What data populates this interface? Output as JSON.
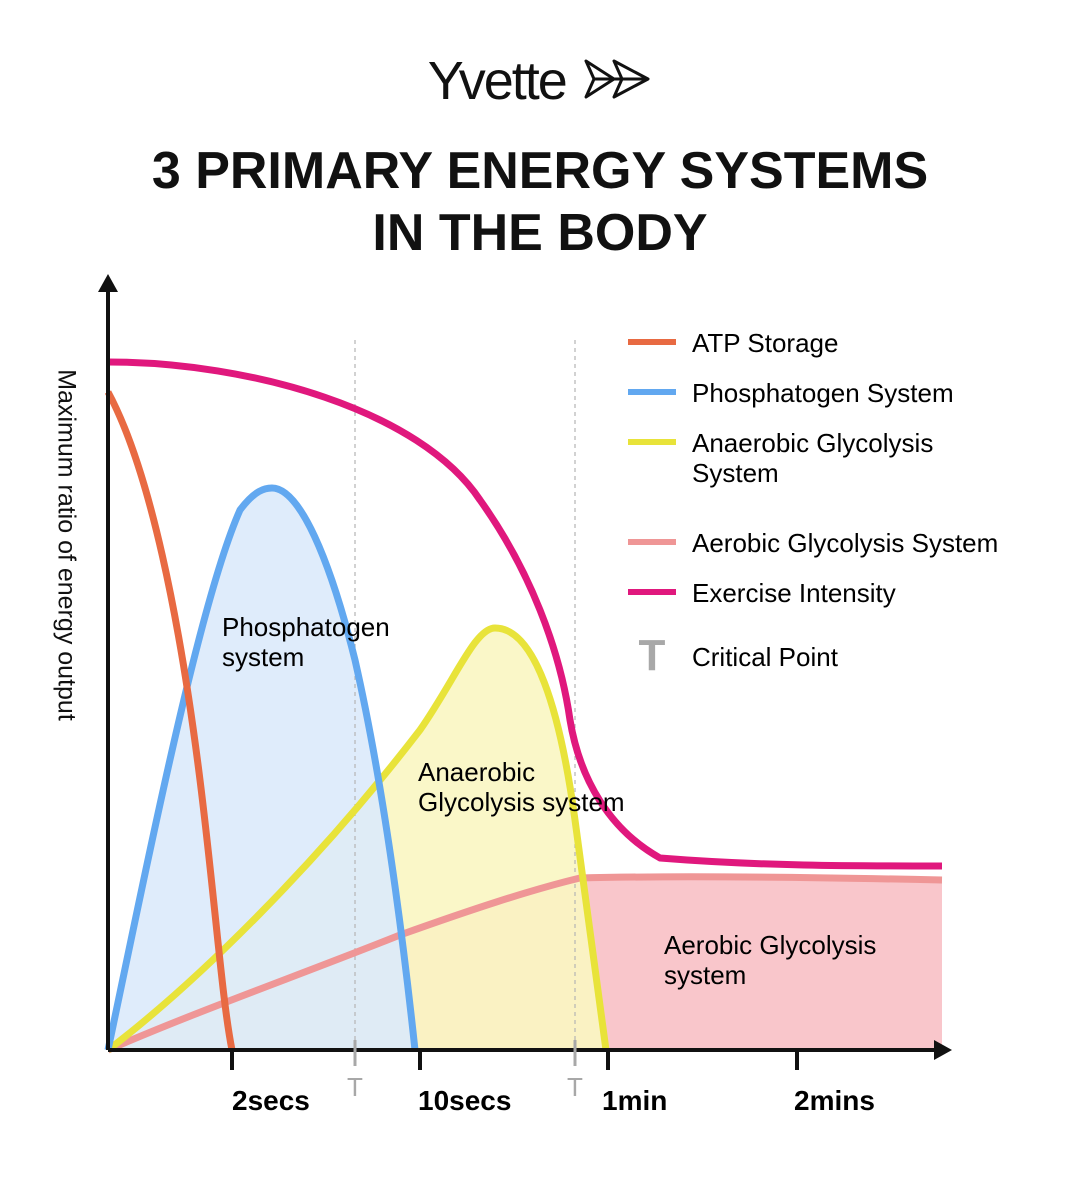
{
  "brand": {
    "name": "Yvette",
    "icon": "double-arrow-logo"
  },
  "title": {
    "line1": "3 PRIMARY ENERGY SYSTEMS",
    "line2": "IN THE BODY"
  },
  "colors": {
    "atp": "#E86A42",
    "phosphagen": "#62A8F0",
    "anaerobic": "#E8E33A",
    "aerobic": "#EF9696",
    "intensity": "#E0187D",
    "critical": "#A8A8A8",
    "phosphagen_fill": "#DCEAFB",
    "anaerobic_fill": "#FAF6C2",
    "aerobic_fill": "#F9C6CB"
  },
  "chart_data": {
    "type": "line",
    "ylabel": "Maximum ratio of energy output",
    "xticks": [
      "2secs",
      "10secs",
      "1min",
      "2mins"
    ],
    "critical_marker": "T",
    "legend": [
      {
        "key": "atp",
        "label": "ATP Storage",
        "kind": "line"
      },
      {
        "key": "phosphagen",
        "label": "Phosphatogen System",
        "kind": "line"
      },
      {
        "key": "anaerobic",
        "label": "Anaerobic Glycolysis",
        "label2": "System",
        "kind": "line"
      },
      {
        "key": "aerobic",
        "label": "Aerobic Glycolysis System",
        "kind": "line"
      },
      {
        "key": "intensity",
        "label": "Exercise Intensity",
        "kind": "line"
      },
      {
        "key": "critical",
        "label": "Critical Point",
        "kind": "marker",
        "marker": "T"
      }
    ],
    "region_labels": {
      "phosphagen": [
        "Phosphatogen",
        "system"
      ],
      "anaerobic": [
        "Anaerobic",
        "Glycolysis system"
      ],
      "aerobic": [
        "Aerobic Glycolysis",
        "system"
      ]
    }
  }
}
